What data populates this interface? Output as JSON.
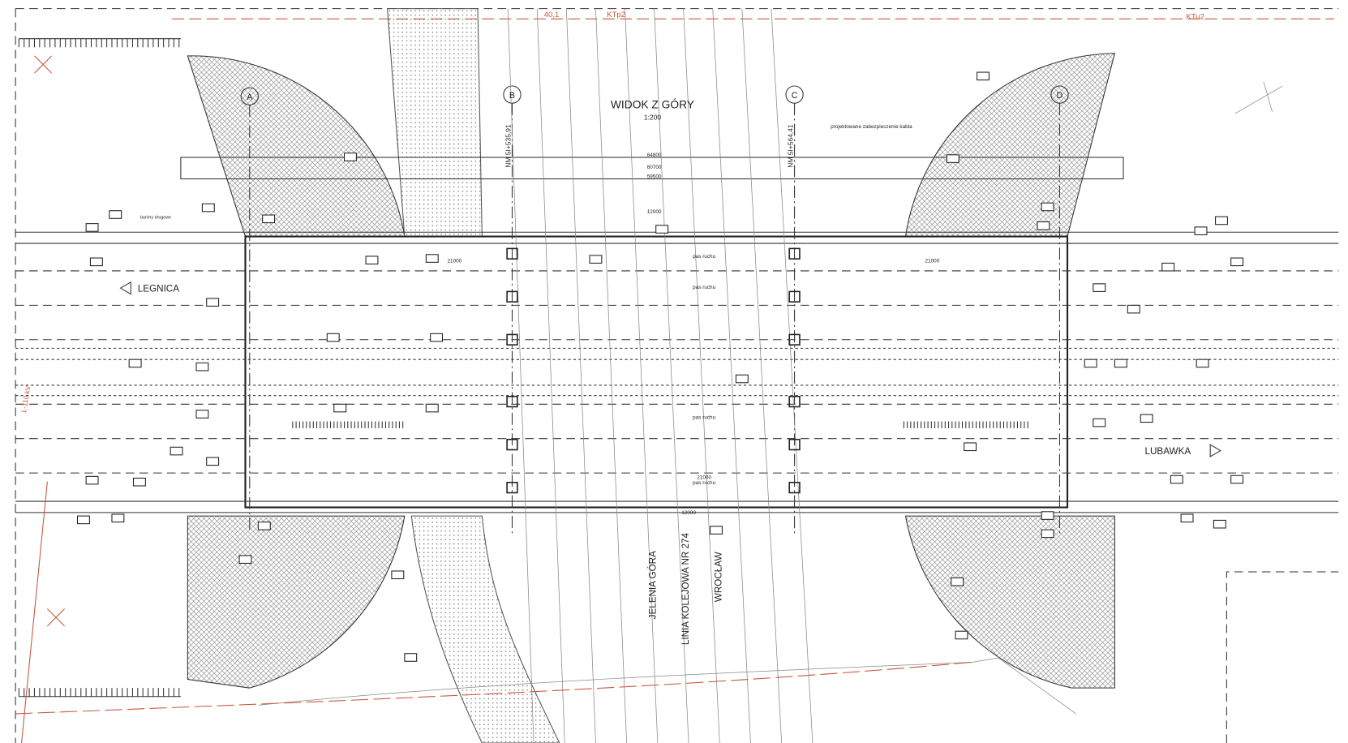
{
  "drawing": {
    "title": "WIDOK Z GÓRY",
    "scale": "1:200",
    "axes": [
      "A",
      "B",
      "C",
      "D"
    ],
    "stations": [
      "NM 5I+535,91",
      "NM 5I+564,41"
    ],
    "directions": {
      "left": "LEGNICA",
      "right": "LUBAWKA",
      "rail_south": "JELENIA GÓRA",
      "rail_north": "WROCŁAW"
    },
    "railway": "LINIA KOLEJOWA NR 274",
    "cables": [
      "KTp2",
      "KTu2",
      "40,1"
    ],
    "power_line": "L-110 kV",
    "note": "projektowane zabezpieczenie kabla",
    "dimensions": [
      "64800",
      "60700",
      "59500",
      "12000",
      "21000",
      "21000",
      "21000",
      "12000"
    ],
    "lanes": [
      "pas ruchu",
      "pas ruchu",
      "pas ruchu",
      "pas ruchu"
    ],
    "curb": "bariery drogowe"
  }
}
